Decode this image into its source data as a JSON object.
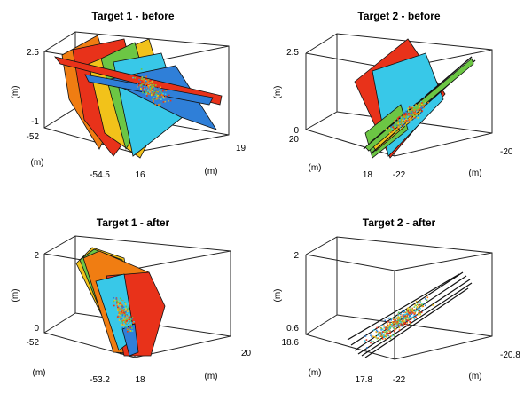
{
  "colors": {
    "red": "#e8321a",
    "orange": "#f07d12",
    "yellow": "#f2c21a",
    "green": "#6cc644",
    "cyan": "#38c8e8",
    "blue": "#2f7fd8",
    "box": "#222222"
  },
  "chart_data": [
    {
      "type": "scatter3d",
      "title": "Target 1 - before",
      "zlabel": "(m)",
      "ylabel": "(m)",
      "xlabel": "(m)",
      "z_ticks": [
        "2.5",
        "-1"
      ],
      "y_ticks": [
        "-52",
        "-54.5"
      ],
      "x_ticks": [
        "16",
        "19"
      ],
      "zlim": [
        -1,
        2.5
      ],
      "ylim": [
        -54.5,
        -52
      ],
      "xlim": [
        16,
        19
      ],
      "surfaces": [
        "red",
        "orange",
        "yellow",
        "green",
        "cyan",
        "blue"
      ],
      "points": "dense multicolor cloud near the center of the box"
    },
    {
      "type": "scatter3d",
      "title": "Target 2 - before",
      "zlabel": "(m)",
      "ylabel": "(m)",
      "xlabel": "(m)",
      "z_ticks": [
        "2.5",
        "0"
      ],
      "y_ticks": [
        "20",
        "18"
      ],
      "x_ticks": [
        "-22",
        "-20"
      ],
      "zlim": [
        0,
        2.5
      ],
      "ylim": [
        18,
        20
      ],
      "xlim": [
        -22,
        -20
      ],
      "surfaces": [
        "red",
        "cyan",
        "green",
        "yellow",
        "black-edged planes"
      ],
      "points": "elongated cloud along a diagonal"
    },
    {
      "type": "scatter3d",
      "title": "Target 1 - after",
      "zlabel": "(m)",
      "ylabel": "(m)",
      "xlabel": "(m)",
      "z_ticks": [
        "2",
        "0"
      ],
      "y_ticks": [
        "-52",
        "-53.2"
      ],
      "x_ticks": [
        "18",
        "20"
      ],
      "zlim": [
        0,
        2
      ],
      "ylim": [
        -53.2,
        -52
      ],
      "xlim": [
        18,
        20
      ],
      "surfaces": [
        "orange",
        "red",
        "green",
        "cyan",
        "blue",
        "yellow"
      ],
      "points": "aligned cloud inside the merged surface stack"
    },
    {
      "type": "scatter3d",
      "title": "Target 2 - after",
      "zlabel": "(m)",
      "ylabel": "(m)",
      "xlabel": "(m)",
      "z_ticks": [
        "2",
        "0.6"
      ],
      "y_ticks": [
        "18.6",
        "17.8"
      ],
      "x_ticks": [
        "-22",
        "-20.8"
      ],
      "zlim": [
        0.6,
        2
      ],
      "ylim": [
        17.8,
        18.6
      ],
      "xlim": [
        -22,
        -20.8
      ],
      "surfaces": [
        "black-edged planes"
      ],
      "points": "diagonal multicolor cloud"
    }
  ]
}
